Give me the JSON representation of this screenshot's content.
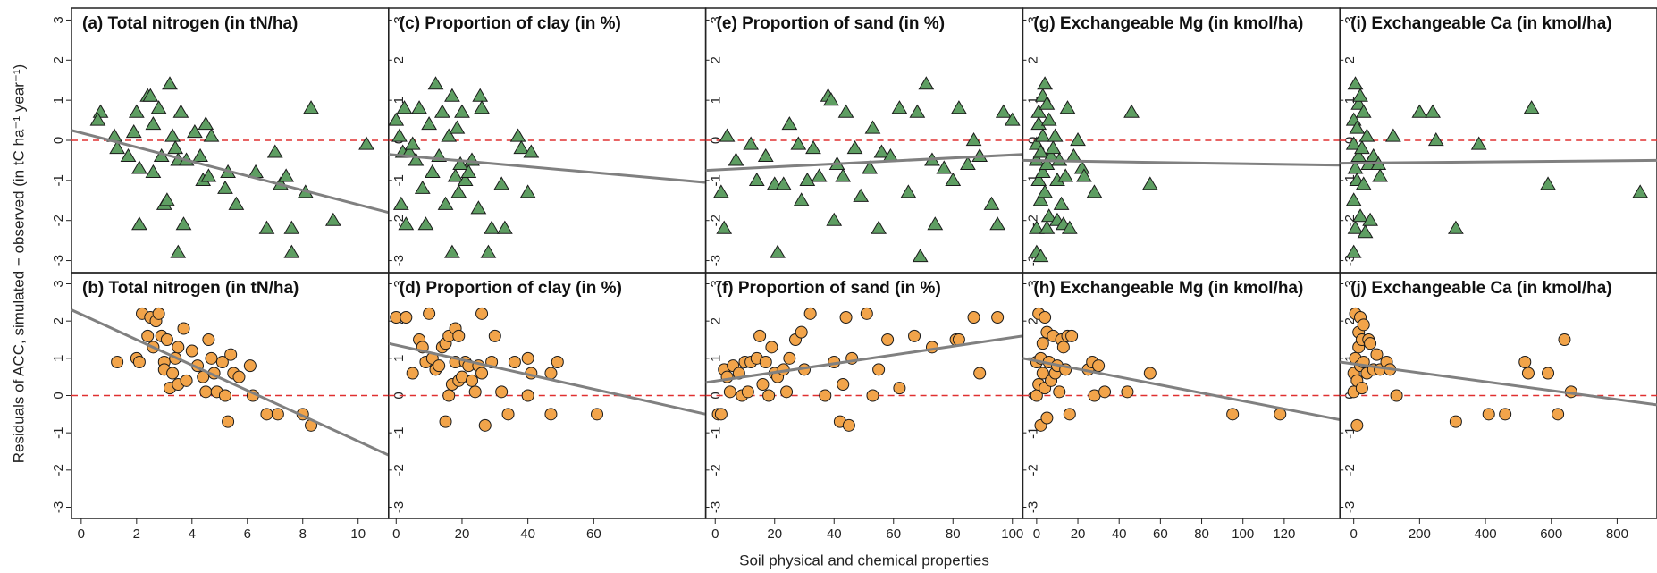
{
  "ylabel": "Residuals of ACC, simulated − observed (in tC ha⁻¹ year⁻¹)",
  "xlabel": "Soil physical and chemical properties",
  "chart_data": [
    {
      "type": "scatter",
      "title": "(a) Total nitrogen (in tN/ha)",
      "marker": "triangle",
      "color": "#5e9e62",
      "x": [
        0.7,
        0.6,
        1.2,
        1.3,
        1.7,
        1.9,
        2.0,
        2.1,
        2.1,
        2.4,
        2.5,
        2.6,
        2.6,
        2.8,
        2.9,
        3.0,
        3.1,
        3.2,
        3.3,
        3.4,
        3.5,
        3.5,
        3.6,
        3.7,
        3.8,
        4.1,
        4.3,
        4.4,
        4.5,
        4.6,
        4.7,
        5.2,
        5.3,
        5.6,
        6.3,
        6.7,
        7.0,
        7.2,
        7.4,
        7.6,
        7.6,
        8.1,
        8.3,
        9.1,
        10.3
      ],
      "values": [
        0.7,
        0.5,
        0.1,
        -0.2,
        -0.4,
        0.2,
        0.7,
        -0.7,
        -2.1,
        1.1,
        1.1,
        0.4,
        -0.8,
        0.8,
        -0.4,
        -1.6,
        -1.5,
        1.4,
        0.1,
        -0.2,
        -2.8,
        -0.5,
        0.7,
        -2.1,
        -0.5,
        0.2,
        -0.4,
        -1.0,
        0.4,
        -0.9,
        0.1,
        -1.2,
        -0.8,
        -1.6,
        -0.8,
        -2.2,
        -0.3,
        -1.1,
        -0.9,
        -2.2,
        -2.8,
        -1.3,
        0.8,
        -2.0,
        -0.1
      ],
      "fit_x": [
        -0.35,
        11.1
      ],
      "fit_y": [
        0.25,
        -1.8
      ],
      "hline": 0,
      "xlim": [
        -0.35,
        11.1
      ],
      "ylim": [
        -3.3,
        3.3
      ],
      "yticks": [
        -3,
        -2,
        -1,
        0,
        1,
        2,
        3
      ]
    },
    {
      "type": "scatter",
      "title": "(b) Total nitrogen (in tN/ha)",
      "marker": "circle",
      "color": "#f2a44a",
      "x": [
        1.3,
        2.0,
        2.1,
        2.2,
        2.4,
        2.5,
        2.6,
        2.7,
        2.8,
        2.9,
        3.0,
        3.0,
        3.1,
        3.2,
        3.3,
        3.4,
        3.5,
        3.5,
        3.7,
        3.8,
        4.0,
        4.2,
        4.4,
        4.5,
        4.6,
        4.7,
        4.8,
        4.9,
        5.1,
        5.2,
        5.3,
        5.4,
        5.5,
        5.7,
        6.1,
        6.2,
        6.7,
        7.1,
        8.0,
        8.3
      ],
      "values": [
        0.9,
        1.0,
        0.9,
        2.2,
        1.6,
        2.1,
        1.3,
        2.0,
        2.2,
        1.6,
        0.9,
        0.7,
        1.5,
        0.2,
        0.6,
        1.0,
        1.3,
        0.3,
        1.8,
        0.4,
        1.2,
        0.8,
        0.5,
        0.1,
        1.5,
        1.0,
        0.6,
        0.1,
        0.9,
        0.0,
        -0.7,
        1.1,
        0.6,
        0.5,
        0.8,
        0.0,
        -0.5,
        -0.5,
        -0.5,
        -0.8
      ],
      "fit_x": [
        -0.35,
        11.1
      ],
      "fit_y": [
        2.3,
        -1.6
      ],
      "hline": 0,
      "xlim": [
        -0.35,
        11.1
      ],
      "xticks": [
        0,
        2,
        4,
        6,
        8,
        10
      ],
      "ylim": [
        -3.3,
        3.3
      ],
      "yticks": [
        -3,
        -2,
        -1,
        0,
        1,
        2,
        3
      ]
    },
    {
      "type": "scatter",
      "title": "(c) Proportion of clay (in %)",
      "marker": "triangle",
      "color": "#5e9e62",
      "x": [
        0,
        1,
        1.5,
        2,
        2.5,
        3,
        4,
        5,
        6,
        7,
        8,
        9,
        10,
        11,
        12,
        13,
        14,
        15,
        16,
        17,
        17,
        18,
        18.5,
        19,
        19.5,
        20,
        21,
        22,
        23,
        25,
        25.5,
        26,
        28,
        29,
        32,
        33,
        37,
        38,
        40,
        41
      ],
      "values": [
        0.5,
        0.1,
        -1.6,
        -0.3,
        0.8,
        -2.1,
        -0.3,
        -0.1,
        -0.5,
        0.8,
        -1.2,
        -2.1,
        0.4,
        -0.8,
        1.4,
        -0.4,
        0.7,
        -1.6,
        0.1,
        -2.8,
        1.1,
        -0.9,
        0.3,
        -1.3,
        -0.6,
        0.7,
        -1.0,
        -0.8,
        -0.5,
        -1.7,
        1.1,
        0.8,
        -2.8,
        -2.2,
        -1.1,
        -2.2,
        0.1,
        -0.2,
        -1.3,
        -0.3
      ],
      "fit_x": [
        -2.3,
        94
      ],
      "fit_y": [
        -0.35,
        -1.05
      ],
      "hline": 0,
      "xlim": [
        -2.3,
        94
      ],
      "ylim": [
        -3.3,
        3.3
      ],
      "yticks": [
        -3,
        -2,
        -1,
        0,
        1,
        2,
        3
      ]
    },
    {
      "type": "scatter",
      "title": "(d) Proportion of clay (in %)",
      "marker": "circle",
      "color": "#f2a44a",
      "x": [
        0,
        3,
        5,
        7,
        8,
        9,
        10,
        11,
        12,
        13,
        14,
        15,
        15,
        16,
        16,
        17,
        18,
        18,
        19,
        19,
        20,
        21,
        22,
        23,
        24,
        25,
        26,
        26,
        27,
        29,
        30,
        32,
        34,
        36,
        40,
        40,
        41,
        47,
        47,
        49,
        61
      ],
      "values": [
        2.1,
        2.1,
        0.6,
        1.5,
        1.3,
        0.9,
        2.2,
        1.0,
        0.7,
        0.8,
        1.3,
        1.4,
        -0.7,
        0.0,
        1.6,
        0.3,
        1.8,
        0.9,
        1.6,
        0.4,
        0.5,
        0.9,
        0.8,
        0.4,
        0.1,
        0.8,
        0.6,
        2.2,
        -0.8,
        0.9,
        1.6,
        0.1,
        -0.5,
        0.9,
        0.0,
        1.0,
        0.6,
        -0.5,
        0.6,
        0.9,
        -0.5
      ],
      "fit_x": [
        -2.3,
        94
      ],
      "fit_y": [
        1.4,
        -0.5
      ],
      "hline": 0,
      "xlim": [
        -2.3,
        94
      ],
      "xticks": [
        0,
        20,
        40,
        60
      ],
      "ylim": [
        -3.3,
        3.3
      ],
      "yticks": [
        -3,
        -2,
        -1,
        0,
        1,
        2,
        3
      ]
    },
    {
      "type": "scatter",
      "title": "(e) Proportion of sand (in %)",
      "marker": "triangle",
      "color": "#5e9e62",
      "x": [
        2,
        3,
        4,
        7,
        12,
        14,
        17,
        20,
        21,
        23,
        25,
        28,
        29,
        31,
        33,
        35,
        38,
        39,
        40,
        41,
        43,
        44,
        47,
        49,
        52,
        53,
        55,
        56,
        59,
        62,
        65,
        68,
        69,
        71,
        73,
        74,
        77,
        80,
        82,
        85,
        87,
        89,
        93,
        95,
        97,
        100
      ],
      "values": [
        -1.3,
        -2.2,
        0.1,
        -0.5,
        -0.1,
        -1.0,
        -0.4,
        -1.1,
        -2.8,
        -1.1,
        0.4,
        -0.1,
        -1.5,
        -1.0,
        -0.2,
        -0.9,
        1.1,
        1.0,
        -2.0,
        -0.6,
        -0.9,
        0.7,
        -0.2,
        -1.4,
        -0.7,
        0.3,
        -2.2,
        -0.3,
        -0.4,
        0.8,
        -1.3,
        0.7,
        -2.9,
        1.4,
        -0.5,
        -2.1,
        -0.7,
        -1.0,
        0.8,
        -0.6,
        0.0,
        -0.4,
        -1.6,
        -2.1,
        0.7,
        0.5
      ],
      "fit_x": [
        -3.2,
        103.5
      ],
      "fit_y": [
        -0.75,
        -0.35
      ],
      "hline": 0,
      "xlim": [
        -3.2,
        103.5
      ],
      "ylim": [
        -3.3,
        3.3
      ],
      "yticks": [
        -3,
        -2,
        -1,
        0,
        1,
        2,
        3
      ]
    },
    {
      "type": "scatter",
      "title": "(f) Proportion of sand (in %)",
      "marker": "circle",
      "color": "#f2a44a",
      "x": [
        1,
        2,
        3,
        4,
        5,
        6,
        8,
        9,
        10,
        11,
        12,
        14,
        15,
        16,
        17,
        18,
        19,
        20,
        21,
        23,
        24,
        25,
        27,
        29,
        30,
        32,
        37,
        40,
        42,
        43,
        44,
        45,
        46,
        51,
        53,
        55,
        58,
        62,
        67,
        73,
        81,
        82,
        87,
        89,
        95
      ],
      "values": [
        -0.5,
        -0.5,
        0.7,
        0.5,
        0.1,
        0.8,
        0.6,
        0.0,
        0.9,
        0.1,
        0.9,
        1.0,
        1.6,
        0.3,
        0.9,
        0.0,
        1.3,
        0.6,
        0.5,
        0.7,
        0.1,
        1.0,
        1.5,
        1.7,
        0.7,
        2.2,
        0.0,
        0.9,
        -0.7,
        0.3,
        2.1,
        -0.8,
        1.0,
        2.2,
        0.0,
        0.7,
        1.5,
        0.2,
        1.6,
        1.3,
        1.5,
        1.5,
        2.1,
        0.6,
        2.1
      ],
      "fit_x": [
        -3.2,
        103.5
      ],
      "fit_y": [
        0.35,
        1.6
      ],
      "hline": 0,
      "xlim": [
        -3.2,
        103.5
      ],
      "xticks": [
        0,
        20,
        40,
        60,
        80,
        100
      ],
      "ylim": [
        -3.3,
        3.3
      ],
      "yticks": [
        -3,
        -2,
        -1,
        0,
        1,
        2,
        3
      ]
    },
    {
      "type": "scatter",
      "title": "(g) Exchangeable Mg (in kmol/ha)",
      "marker": "triangle",
      "color": "#5e9e62",
      "x": [
        0,
        0,
        0,
        0,
        1,
        1,
        1,
        2,
        2,
        2,
        3,
        3,
        3,
        4,
        4,
        5,
        5,
        5,
        6,
        6,
        7,
        8,
        9,
        10,
        10,
        11,
        12,
        13,
        14,
        15,
        16,
        18,
        20,
        22,
        23,
        28,
        46,
        55
      ],
      "values": [
        -0.1,
        -0.5,
        -2.2,
        -2.8,
        0.4,
        -1.0,
        0.7,
        -1.5,
        -2.9,
        -0.3,
        1.1,
        0.1,
        -0.8,
        1.4,
        -1.3,
        0.9,
        -2.2,
        -0.6,
        0.5,
        -1.9,
        -0.4,
        -0.2,
        0.1,
        -1.0,
        -2.0,
        -0.5,
        -1.6,
        -2.1,
        -0.9,
        0.8,
        -2.2,
        -0.4,
        0.0,
        -0.7,
        -0.9,
        -1.3,
        0.7,
        -1.1
      ],
      "fit_x": [
        -6.7,
        147
      ],
      "fit_y": [
        -0.5,
        -0.62
      ],
      "hline": 0,
      "xlim": [
        -6.7,
        147
      ],
      "ylim": [
        -3.3,
        3.3
      ],
      "yticks": [
        -3,
        -2,
        -1,
        0,
        1,
        2,
        3
      ]
    },
    {
      "type": "scatter",
      "title": "(h) Exchangeable Mg (in kmol/ha)",
      "marker": "circle",
      "color": "#f2a44a",
      "x": [
        0,
        0,
        1,
        1,
        2,
        2,
        3,
        3,
        4,
        4,
        5,
        5,
        6,
        7,
        8,
        9,
        10,
        11,
        12,
        13,
        14,
        15,
        16,
        17,
        25,
        27,
        28,
        30,
        33,
        44,
        55,
        95,
        118
      ],
      "values": [
        0.0,
        0.9,
        2.2,
        0.3,
        1.0,
        -0.8,
        0.6,
        1.4,
        2.1,
        0.2,
        1.7,
        -0.6,
        0.9,
        0.4,
        1.6,
        0.6,
        0.8,
        0.1,
        1.5,
        1.3,
        0.7,
        1.6,
        -0.5,
        1.6,
        0.7,
        0.9,
        0.0,
        0.8,
        0.1,
        0.1,
        0.6,
        -0.5,
        -0.5
      ],
      "fit_x": [
        -6.7,
        147
      ],
      "fit_y": [
        1.0,
        -0.65
      ],
      "hline": 0,
      "xlim": [
        -6.7,
        147
      ],
      "xticks": [
        0,
        20,
        40,
        60,
        80,
        100,
        120
      ],
      "ylim": [
        -3.3,
        3.3
      ],
      "yticks": [
        -3,
        -2,
        -1,
        0,
        1,
        2,
        3
      ]
    },
    {
      "type": "scatter",
      "title": "(i) Exchangeable Ca (in kmol/ha)",
      "marker": "triangle",
      "color": "#5e9e62",
      "x": [
        0,
        0,
        0,
        0,
        5,
        5,
        5,
        10,
        10,
        15,
        15,
        20,
        20,
        25,
        30,
        30,
        35,
        40,
        45,
        50,
        60,
        75,
        80,
        120,
        200,
        240,
        250,
        310,
        380,
        540,
        590,
        870
      ],
      "values": [
        0.5,
        -0.1,
        -1.5,
        -2.8,
        1.4,
        -0.7,
        -2.2,
        0.3,
        -1.0,
        0.9,
        -0.4,
        1.1,
        -1.9,
        -0.2,
        0.7,
        -1.1,
        -2.3,
        0.1,
        -0.6,
        -2.0,
        -0.4,
        -0.6,
        -0.9,
        0.1,
        0.7,
        0.7,
        0.0,
        -2.2,
        -0.1,
        0.8,
        -1.1,
        -1.3
      ],
      "fit_x": [
        -42,
        921
      ],
      "fit_y": [
        -0.57,
        -0.5
      ],
      "hline": 0,
      "xlim": [
        -42,
        921
      ],
      "ylim": [
        -3.3,
        3.3
      ],
      "yticks": [
        -3,
        -2,
        -1,
        0,
        1,
        2,
        3
      ]
    },
    {
      "type": "scatter",
      "title": "(j) Exchangeable Ca (in kmol/ha)",
      "marker": "circle",
      "color": "#f2a44a",
      "x": [
        0,
        0,
        5,
        5,
        10,
        10,
        15,
        15,
        20,
        20,
        25,
        25,
        30,
        30,
        40,
        45,
        50,
        60,
        70,
        80,
        100,
        110,
        130,
        310,
        410,
        460,
        520,
        530,
        590,
        620,
        640,
        660
      ],
      "values": [
        0.1,
        0.6,
        2.2,
        1.0,
        -0.8,
        0.4,
        1.7,
        1.3,
        0.8,
        2.1,
        1.5,
        0.2,
        1.9,
        0.9,
        0.6,
        1.5,
        1.4,
        0.7,
        1.1,
        0.7,
        0.9,
        0.7,
        0.0,
        -0.7,
        -0.5,
        -0.5,
        0.9,
        0.6,
        0.6,
        -0.5,
        1.5,
        0.1
      ],
      "fit_x": [
        -42,
        921
      ],
      "fit_y": [
        0.9,
        -0.25
      ],
      "hline": 0,
      "xlim": [
        -42,
        921
      ],
      "xticks": [
        0,
        200,
        400,
        600,
        800
      ],
      "ylim": [
        -3.3,
        3.3
      ],
      "yticks": [
        -3,
        -2,
        -1,
        0,
        1,
        2,
        3
      ]
    }
  ]
}
